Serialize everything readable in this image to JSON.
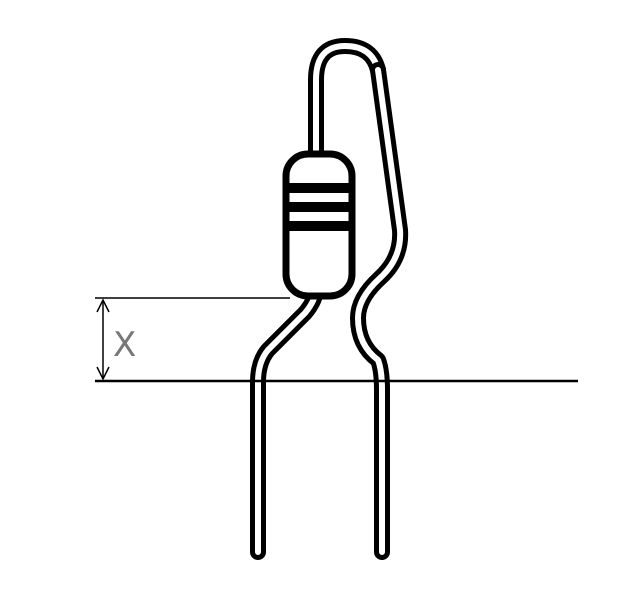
{
  "diagram": {
    "dimension_label": "X",
    "colors": {
      "line": "#000000",
      "background": "#ffffff",
      "label": "#777777"
    }
  }
}
